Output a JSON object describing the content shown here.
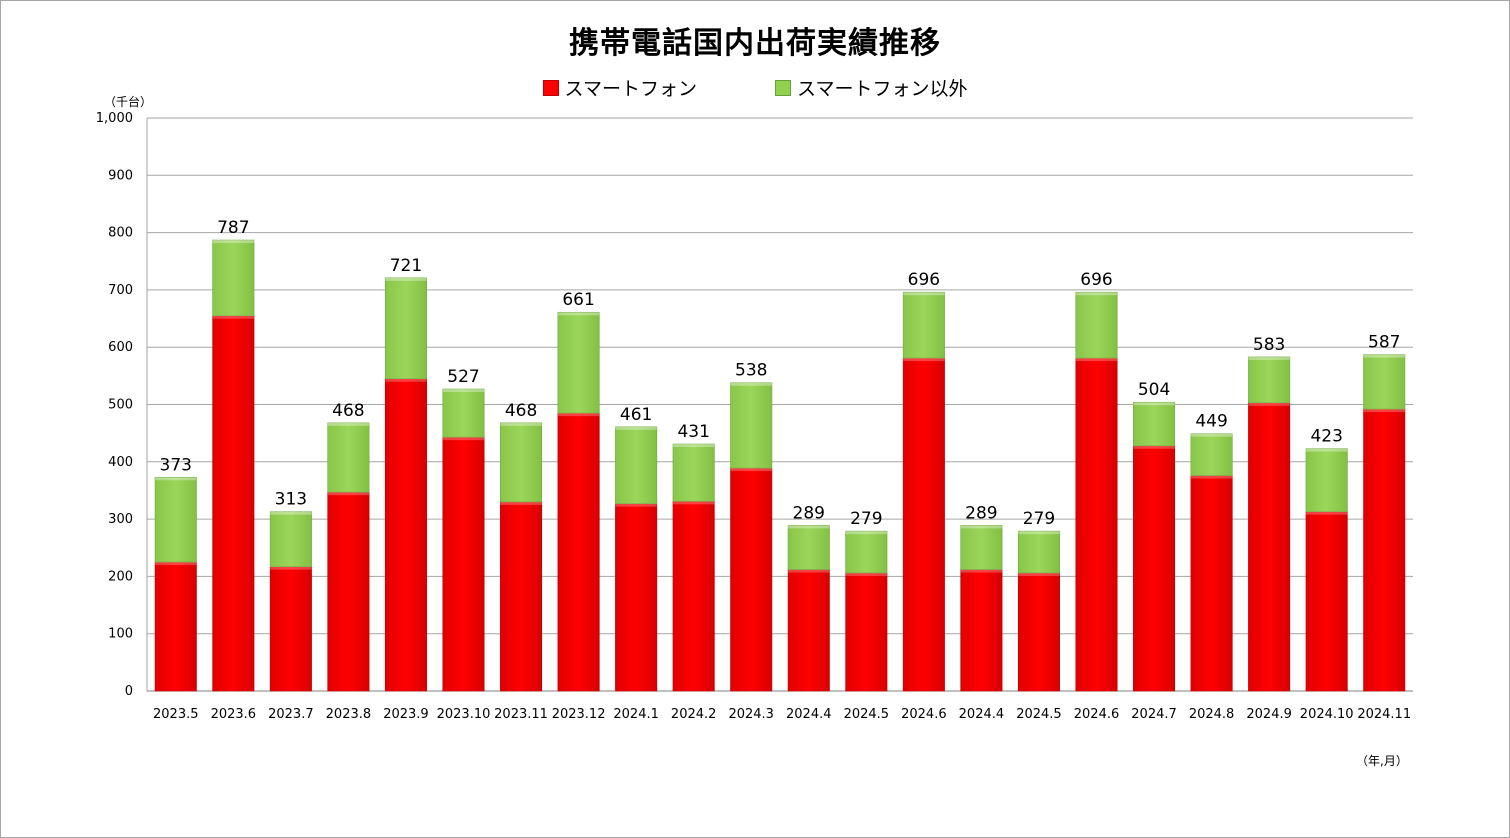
{
  "colors": {
    "smartphone": "#ff0000",
    "other": "#92d050",
    "grid": "#a6a6a6",
    "axis": "#000000"
  },
  "chart_data": {
    "type": "bar",
    "stacked": true,
    "title": "携帯電話国内出荷実績推移",
    "ylabel": "（千台）",
    "xlabel": "（年,月）",
    "ylim": [
      0,
      1000
    ],
    "yticks": [
      0,
      100,
      200,
      300,
      400,
      500,
      600,
      700,
      800,
      900,
      1000
    ],
    "ytick_labels": [
      "0",
      "100",
      "200",
      "300",
      "400",
      "500",
      "600",
      "700",
      "800",
      "900",
      "1,000"
    ],
    "grid": true,
    "legend": "top-center",
    "categories": [
      "2023.5",
      "2023.6",
      "2023.7",
      "2023.8",
      "2023.9",
      "2023.10",
      "2023.11",
      "2023.12",
      "2024.1",
      "2024.2",
      "2024.3",
      "2024.4",
      "2024.5",
      "2024.6",
      "2024.4",
      "2024.5",
      "2024.6",
      "2024.7",
      "2024.8",
      "2024.9",
      "2024.10",
      "2024.11"
    ],
    "series": [
      {
        "name": "スマートフォン",
        "values": [
          225,
          655,
          217,
          347,
          545,
          443,
          330,
          485,
          327,
          331,
          389,
          212,
          206,
          581,
          212,
          206,
          581,
          428,
          376,
          503,
          313,
          492
        ]
      },
      {
        "name": "スマートフォン以外",
        "values": [
          148,
          132,
          96,
          121,
          176,
          84,
          138,
          176,
          134,
          100,
          149,
          77,
          73,
          115,
          77,
          73,
          115,
          76,
          73,
          80,
          110,
          95
        ]
      }
    ],
    "totals": [
      373,
      787,
      313,
      468,
      721,
      527,
      468,
      661,
      461,
      431,
      538,
      289,
      279,
      696,
      289,
      279,
      696,
      504,
      449,
      583,
      423,
      587
    ]
  }
}
